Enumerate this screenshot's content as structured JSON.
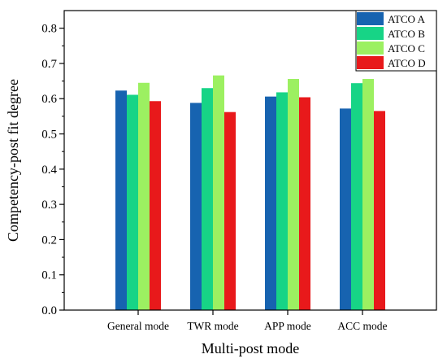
{
  "chart_data": {
    "type": "bar",
    "categories": [
      "General mode",
      "TWR mode",
      "APP mode",
      "ACC mode"
    ],
    "series": [
      {
        "name": "ATCO A",
        "color": "#1763b0",
        "values": [
          0.623,
          0.588,
          0.606,
          0.572
        ]
      },
      {
        "name": "ATCO B",
        "color": "#17d486",
        "values": [
          0.611,
          0.63,
          0.618,
          0.644
        ]
      },
      {
        "name": "ATCO C",
        "color": "#9cf061",
        "values": [
          0.645,
          0.666,
          0.656,
          0.656
        ]
      },
      {
        "name": "ATCO D",
        "color": "#e8191b",
        "values": [
          0.593,
          0.562,
          0.604,
          0.565
        ]
      }
    ],
    "xlabel": "Multi-post mode",
    "ylabel": "Competency-post fit degree",
    "ylim": [
      0,
      0.85
    ],
    "yticks": [
      0.0,
      0.1,
      0.2,
      0.3,
      0.4,
      0.5,
      0.6,
      0.7,
      0.8
    ],
    "ytick_labels": [
      "0.0",
      "0.1",
      "0.2",
      "0.3",
      "0.4",
      "0.5",
      "0.6",
      "0.7",
      "0.8"
    ],
    "grid": false,
    "legend_position": "top-right"
  }
}
